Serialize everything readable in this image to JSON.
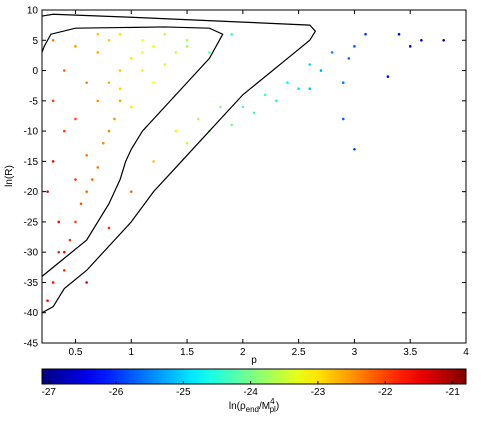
{
  "chart_data": {
    "type": "scatter",
    "xlabel": "p",
    "ylabel": "ln(R)",
    "xlim": [
      0.2,
      4
    ],
    "ylim": [
      -45,
      10
    ],
    "xticks": [
      0.5,
      1,
      1.5,
      2,
      2.5,
      3,
      3.5,
      4
    ],
    "yticks": [
      10,
      5,
      0,
      -5,
      -10,
      -15,
      -20,
      -25,
      -30,
      -35,
      -40,
      -45
    ],
    "colormap": "jet",
    "clim": [
      -27.1,
      -20.8
    ],
    "cticks": [
      -27,
      -26,
      -25,
      -24,
      -23,
      -22,
      -21
    ],
    "colorbar_label": [
      "ln(ρ",
      "end",
      "/M",
      "4",
      "pl",
      ")"
    ],
    "points": {
      "x": [
        0.25,
        0.3,
        0.35,
        0.4,
        0.45,
        0.5,
        0.55,
        0.6,
        0.65,
        0.7,
        0.75,
        0.8,
        0.85,
        0.9,
        0.25,
        0.3,
        0.35,
        0.4,
        0.5,
        0.6,
        0.7,
        0.8,
        0.9,
        1.0,
        1.1,
        1.2,
        0.3,
        0.4,
        0.5,
        0.6,
        0.7,
        0.8,
        0.9,
        1.0,
        1.1,
        1.2,
        1.3,
        1.4,
        1.5,
        0.3,
        0.5,
        0.7,
        0.9,
        1.1,
        1.3,
        1.5,
        1.7,
        1.9,
        0.4,
        0.6,
        0.8,
        1.0,
        1.2,
        1.4,
        1.6,
        1.8,
        2.0,
        2.2,
        2.4,
        2.6,
        1.5,
        1.7,
        1.9,
        2.1,
        2.3,
        2.5,
        2.7,
        2.8,
        2.9,
        3.0,
        3.1,
        3.3,
        3.4,
        3.5,
        3.6,
        3.8,
        2.9,
        3.0,
        2.6,
        2.95
      ],
      "y": [
        -38,
        -35,
        -30,
        -33,
        -28,
        -25,
        -22,
        -20,
        -18,
        -16,
        -12,
        -10,
        -8,
        -5,
        -20,
        -15,
        -25,
        -10,
        -18,
        -14,
        -5,
        -2,
        0,
        2,
        3,
        4,
        -5,
        0,
        -8,
        -2,
        3,
        5,
        -3,
        -6,
        0,
        -2,
        1,
        3,
        5,
        5,
        4,
        6,
        6,
        5,
        6,
        4,
        3,
        6,
        -30,
        -35,
        -26,
        -20,
        -15,
        -10,
        -8,
        -6,
        -6,
        -4,
        -2,
        1,
        -12,
        -10,
        -9,
        -7,
        -5,
        -3,
        0,
        3,
        -2,
        4,
        6,
        -1,
        6,
        4,
        5,
        5,
        -8,
        -13,
        -3,
        2
      ],
      "values": [
        -21.6,
        -21.7,
        -21.8,
        -21.9,
        -21.9,
        -22.0,
        -22.1,
        -22.2,
        -22.2,
        -22.3,
        -22.4,
        -22.4,
        -22.5,
        -22.6,
        -21.3,
        -21.5,
        -21.6,
        -22.0,
        -21.9,
        -22.3,
        -22.5,
        -22.7,
        -22.8,
        -23.0,
        -23.2,
        -23.3,
        -22.0,
        -22.2,
        -22.1,
        -22.4,
        -22.6,
        -22.8,
        -22.9,
        -23.0,
        -23.1,
        -23.3,
        -23.4,
        -23.6,
        -23.8,
        -22.3,
        -22.5,
        -22.8,
        -23.0,
        -23.2,
        -23.5,
        -23.8,
        -24.1,
        -24.3,
        -21.4,
        -21.5,
        -21.9,
        -22.2,
        -22.8,
        -23.1,
        -23.6,
        -23.9,
        -24.2,
        -24.4,
        -24.8,
        -25.0,
        -23.6,
        -23.9,
        -24.1,
        -24.4,
        -24.7,
        -24.9,
        -25.3,
        -25.5,
        -25.6,
        -25.8,
        -26.0,
        -26.3,
        -26.4,
        -26.6,
        -26.7,
        -27.0,
        -25.7,
        -25.9,
        -25.1,
        -25.7
      ]
    },
    "contours": [
      {
        "color": "#000000",
        "x": [
          0.2,
          0.3,
          0.4,
          0.6,
          0.8,
          1.0,
          1.2,
          1.4,
          1.6,
          1.8,
          2.0,
          2.2,
          2.4,
          2.6,
          2.65,
          2.6,
          2.0,
          1.0,
          0.3,
          0.2
        ],
        "y": [
          -40,
          -39,
          -36,
          -33,
          -29,
          -25,
          -20,
          -16,
          -12,
          -8,
          -4,
          -1,
          2,
          5,
          6.5,
          7.5,
          8,
          8.8,
          9.3,
          9
        ]
      },
      {
        "color": "#000000",
        "x": [
          0.2,
          0.4,
          0.6,
          0.8,
          0.9,
          0.95,
          1.0,
          1.1,
          1.3,
          1.5,
          1.7,
          1.82,
          1.7,
          1.3,
          0.5,
          0.28,
          0.22,
          0.2
        ],
        "y": [
          -34,
          -31,
          -28,
          -22,
          -18,
          -15,
          -13,
          -10,
          -6,
          -2,
          2,
          6,
          7,
          7.2,
          7,
          6,
          4,
          3
        ]
      }
    ]
  }
}
